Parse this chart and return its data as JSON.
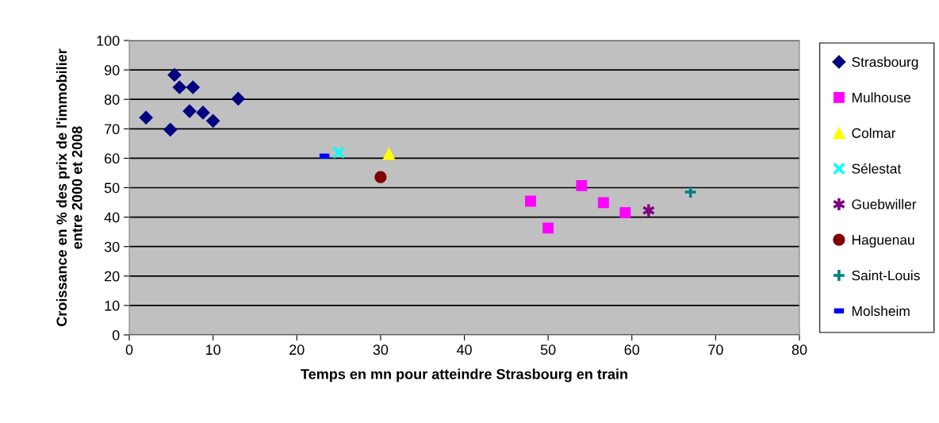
{
  "chart_data": {
    "type": "scatter",
    "xlabel": "Temps en mn pour atteindre Strasbourg en train",
    "ylabel": "Croissance en % des prix de l'immobilier\nentre 2000 et 2008",
    "xlim": [
      0,
      80
    ],
    "xticks": [
      0,
      10,
      20,
      30,
      40,
      50,
      60,
      70,
      80
    ],
    "ylim": [
      0,
      100
    ],
    "yticks": [
      0,
      10,
      20,
      30,
      40,
      50,
      60,
      70,
      80,
      90,
      100
    ],
    "grid": "y",
    "legend": "right",
    "series": [
      {
        "name": "Strasbourg",
        "color": "#000080",
        "marker": "diamond",
        "x": [
          5.4,
          6.0,
          7.6,
          13.0,
          2.0,
          7.2,
          8.8,
          10.0,
          4.9
        ],
        "values": [
          88.3,
          84.1,
          84.1,
          80.2,
          73.8,
          76.0,
          75.5,
          72.7,
          69.7
        ]
      },
      {
        "name": "Mulhouse",
        "color": "#ff00ff",
        "marker": "square",
        "x": [
          47.9,
          50.0,
          54.0,
          56.6,
          59.2
        ],
        "values": [
          45.4,
          36.3,
          50.7,
          44.9,
          41.5
        ]
      },
      {
        "name": "Colmar",
        "color": "#ffff00",
        "marker": "triangle",
        "x": [
          31.0
        ],
        "values": [
          61.5
        ]
      },
      {
        "name": "Sélestat",
        "color": "#00ffff",
        "marker": "cross",
        "x": [
          25.0
        ],
        "values": [
          61.9
        ]
      },
      {
        "name": "Guebwiller",
        "color": "#800080",
        "marker": "cross",
        "x": [
          62.0
        ],
        "values": [
          42.3
        ]
      },
      {
        "name": "Haguenau",
        "color": "#800000",
        "marker": "circle",
        "x": [
          30.0
        ],
        "values": [
          53.6
        ]
      },
      {
        "name": "Saint-Louis",
        "color": "#008080",
        "marker": "plus",
        "x": [
          67.0
        ],
        "values": [
          48.5
        ]
      },
      {
        "name": "Molsheim",
        "color": "#0000ff",
        "x": [
          23.3
        ],
        "values": [
          60.7
        ]
      }
    ]
  }
}
